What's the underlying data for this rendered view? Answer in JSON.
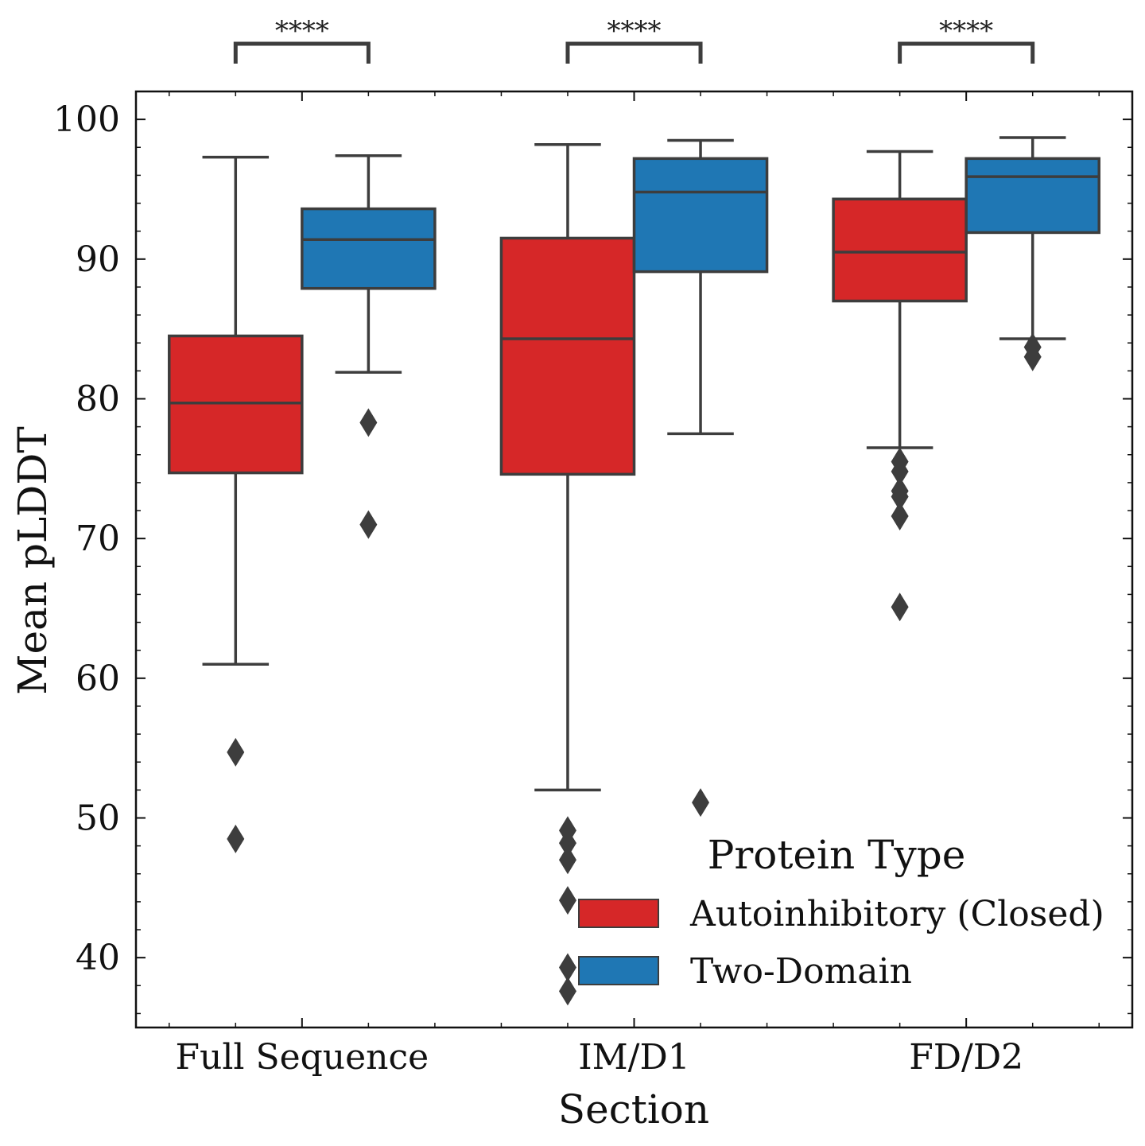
{
  "chart_data": {
    "type": "box",
    "xlabel": "Section",
    "ylabel": "Mean pLDDT",
    "ylim": [
      35,
      102
    ],
    "yticks": [
      40,
      50,
      60,
      70,
      80,
      90,
      100
    ],
    "categories": [
      "Full Sequence",
      "IM/D1",
      "FD/D2"
    ],
    "legend": {
      "title": "Protein Type",
      "placement": "lower-right"
    },
    "series": [
      {
        "name": "Autoinhibitory (Closed)",
        "color": "#d62728",
        "boxes": [
          {
            "whisker_low": 61.0,
            "q1": 74.7,
            "median": 79.7,
            "q3": 84.5,
            "whisker_high": 97.3,
            "outliers": [
              54.7,
              48.5
            ]
          },
          {
            "whisker_low": 52.0,
            "q1": 74.6,
            "median": 84.3,
            "q3": 91.5,
            "whisker_high": 98.2,
            "outliers": [
              49.1,
              48.2,
              47.0,
              44.1,
              39.3,
              37.6
            ]
          },
          {
            "whisker_low": 76.5,
            "q1": 87.0,
            "median": 90.5,
            "q3": 94.3,
            "whisker_high": 97.7,
            "outliers": [
              75.5,
              74.8,
              73.4,
              73.0,
              71.6,
              65.1
            ]
          }
        ]
      },
      {
        "name": "Two-Domain",
        "color": "#1f77b4",
        "boxes": [
          {
            "whisker_low": 81.9,
            "q1": 87.9,
            "median": 91.4,
            "q3": 93.6,
            "whisker_high": 97.4,
            "outliers": [
              78.3,
              71.0
            ]
          },
          {
            "whisker_low": 77.5,
            "q1": 89.1,
            "median": 94.8,
            "q3": 97.2,
            "whisker_high": 98.5,
            "outliers": [
              51.1
            ]
          },
          {
            "whisker_low": 84.3,
            "q1": 91.9,
            "median": 95.9,
            "q3": 97.2,
            "whisker_high": 98.7,
            "outliers": [
              83.7,
              83.0
            ]
          }
        ]
      }
    ],
    "significance": [
      {
        "category": "Full Sequence",
        "label": "****"
      },
      {
        "category": "IM/D1",
        "label": "****"
      },
      {
        "category": "FD/D2",
        "label": "****"
      }
    ]
  }
}
